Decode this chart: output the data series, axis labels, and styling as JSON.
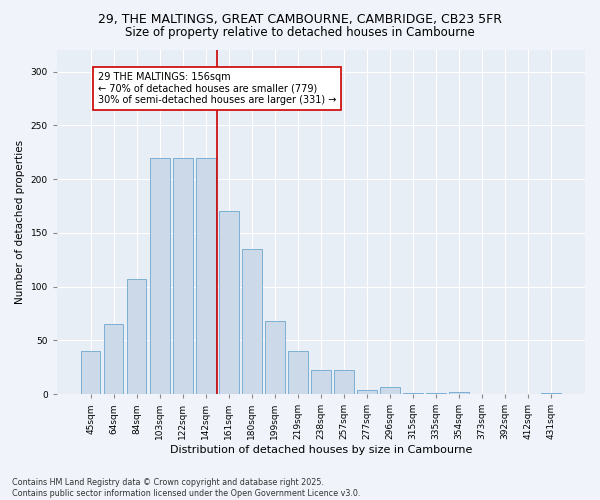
{
  "title": "29, THE MALTINGS, GREAT CAMBOURNE, CAMBRIDGE, CB23 5FR",
  "subtitle": "Size of property relative to detached houses in Cambourne",
  "xlabel": "Distribution of detached houses by size in Cambourne",
  "ylabel": "Number of detached properties",
  "categories": [
    "45sqm",
    "64sqm",
    "84sqm",
    "103sqm",
    "122sqm",
    "142sqm",
    "161sqm",
    "180sqm",
    "199sqm",
    "219sqm",
    "238sqm",
    "257sqm",
    "277sqm",
    "296sqm",
    "315sqm",
    "335sqm",
    "354sqm",
    "373sqm",
    "392sqm",
    "412sqm",
    "431sqm"
  ],
  "values": [
    40,
    65,
    107,
    220,
    220,
    220,
    170,
    135,
    68,
    40,
    22,
    22,
    4,
    7,
    1,
    1,
    2,
    0,
    0,
    0,
    1
  ],
  "bar_color": "#ccd9e8",
  "bar_edge_color": "#7bafd4",
  "vline_x_index": 6,
  "vline_color": "#cc0000",
  "annotation_text": "29 THE MALTINGS: 156sqm\n← 70% of detached houses are smaller (779)\n30% of semi-detached houses are larger (331) →",
  "annotation_box_color": "#ffffff",
  "annotation_box_edge": "#cc0000",
  "ylim": [
    0,
    320
  ],
  "yticks": [
    0,
    50,
    100,
    150,
    200,
    250,
    300
  ],
  "footer": "Contains HM Land Registry data © Crown copyright and database right 2025.\nContains public sector information licensed under the Open Government Licence v3.0.",
  "bg_color": "#f0f4fa",
  "plot_bg_color": "#e8eef6",
  "title_fontsize": 9,
  "subtitle_fontsize": 8.5,
  "annot_fontsize": 7,
  "ylabel_fontsize": 7.5,
  "xlabel_fontsize": 8,
  "tick_fontsize": 6.5,
  "footer_fontsize": 5.8
}
